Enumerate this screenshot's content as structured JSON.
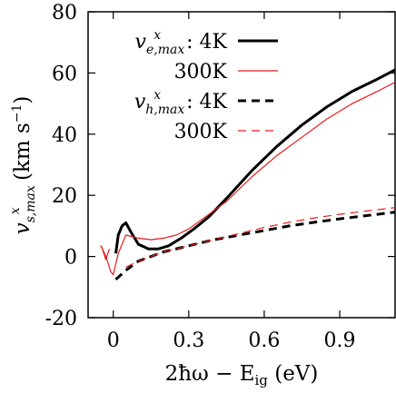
{
  "chart_data": {
    "type": "line",
    "xlabel_parts": [
      "2ħω − E",
      "ig",
      " (eV)"
    ],
    "ylabel_parts": [
      "v",
      "s,max",
      "x",
      " (km s",
      "−1",
      ")"
    ],
    "xlim": [
      -0.1,
      1.12
    ],
    "ylim": [
      -20,
      80
    ],
    "xticks": [
      0,
      0.3,
      0.6,
      0.9
    ],
    "xtick_labels": [
      "0",
      "0.3",
      "0.6",
      "0.9"
    ],
    "yticks": [
      -20,
      0,
      20,
      40,
      60,
      80
    ],
    "ytick_labels": [
      "-20",
      "0",
      "20",
      "40",
      "60",
      "80"
    ],
    "legend_placement": "top-right",
    "grid": false,
    "series": [
      {
        "legend_main": "v",
        "legend_sub": "e,max",
        "legend_sup": "x",
        "legend_suffix": ": 4K",
        "color": "#000000",
        "width": 3,
        "dash": "",
        "x": [
          0.01,
          0.02,
          0.035,
          0.05,
          0.07,
          0.1,
          0.14,
          0.18,
          0.22,
          0.27,
          0.32,
          0.38,
          0.45,
          0.55,
          0.65,
          0.75,
          0.85,
          0.95,
          1.05,
          1.12
        ],
        "y": [
          1,
          7,
          10,
          11,
          8,
          4,
          2.5,
          2.5,
          3.5,
          6,
          9,
          13,
          19,
          28,
          36,
          43,
          49,
          54,
          58,
          61
        ]
      },
      {
        "legend_main": "",
        "legend_sub": "",
        "legend_sup": "",
        "legend_suffix": "300K",
        "color": "#e8191b",
        "width": 1.2,
        "dash": "",
        "x": [
          -0.015,
          -0.03,
          -0.045,
          -0.05,
          -0.04,
          -0.025,
          -0.01,
          0.0,
          0.02,
          0.05,
          0.1,
          0.15,
          0.2,
          0.25,
          0.3,
          0.35,
          0.45,
          0.55,
          0.65,
          0.75,
          0.85,
          0.95,
          1.05,
          1.12
        ],
        "y": [
          2.5,
          -1,
          3,
          3.5,
          2,
          -1,
          -5,
          -6,
          1,
          7,
          6,
          5.5,
          6,
          7,
          9,
          12,
          18,
          26,
          33,
          39,
          45,
          50,
          54,
          57
        ]
      },
      {
        "legend_main": "v",
        "legend_sub": "h,max",
        "legend_sup": "x",
        "legend_suffix": ": 4K",
        "color": "#000000",
        "width": 3,
        "dash": "9 6",
        "x": [
          0.01,
          0.05,
          0.1,
          0.2,
          0.3,
          0.4,
          0.5,
          0.6,
          0.7,
          0.8,
          0.9,
          1.0,
          1.12
        ],
        "y": [
          -7.5,
          -4.5,
          -1.5,
          1.5,
          3.5,
          5.5,
          7,
          8.5,
          10,
          11.2,
          12.3,
          13.3,
          14.5
        ]
      },
      {
        "legend_main": "",
        "legend_sub": "",
        "legend_sup": "",
        "legend_suffix": "300K",
        "color": "#e8191b",
        "width": 1.2,
        "dash": "9 6",
        "x": [
          0.05,
          0.1,
          0.2,
          0.3,
          0.4,
          0.5,
          0.6,
          0.7,
          0.8,
          0.9,
          1.0,
          1.12
        ],
        "y": [
          -3.5,
          -1.5,
          1.5,
          3.5,
          5.5,
          7.5,
          9.5,
          11.2,
          12.6,
          13.8,
          14.8,
          16
        ]
      }
    ]
  }
}
